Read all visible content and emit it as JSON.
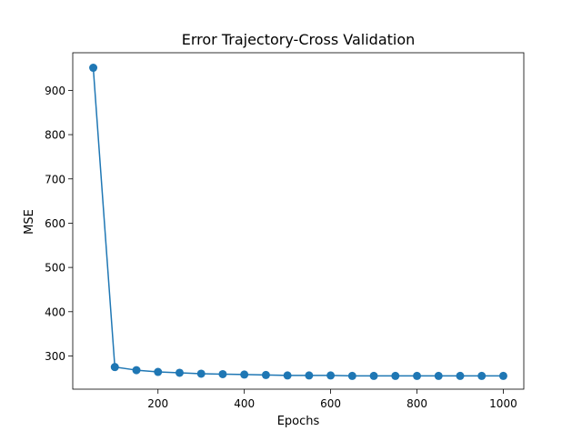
{
  "chart_data": {
    "type": "line",
    "title": "Error Trajectory-Cross Validation",
    "xlabel": "Epochs",
    "ylabel": "MSE",
    "xlim": [
      2.5,
      1047.5
    ],
    "ylim": [
      225,
      985
    ],
    "xticks": [
      200,
      400,
      600,
      800,
      1000
    ],
    "yticks": [
      300,
      400,
      500,
      600,
      700,
      800,
      900
    ],
    "grid": false,
    "legend": "none",
    "series": [
      {
        "color": "#1f77b4",
        "marker": "circle",
        "x": [
          50,
          100,
          150,
          200,
          250,
          300,
          350,
          400,
          450,
          500,
          550,
          600,
          650,
          700,
          750,
          800,
          850,
          900,
          950,
          1000
        ],
        "y": [
          951,
          275,
          268,
          264,
          262,
          260,
          259,
          258,
          257,
          256,
          256,
          256,
          255,
          255,
          255,
          255,
          255,
          255,
          255,
          255
        ]
      }
    ]
  }
}
